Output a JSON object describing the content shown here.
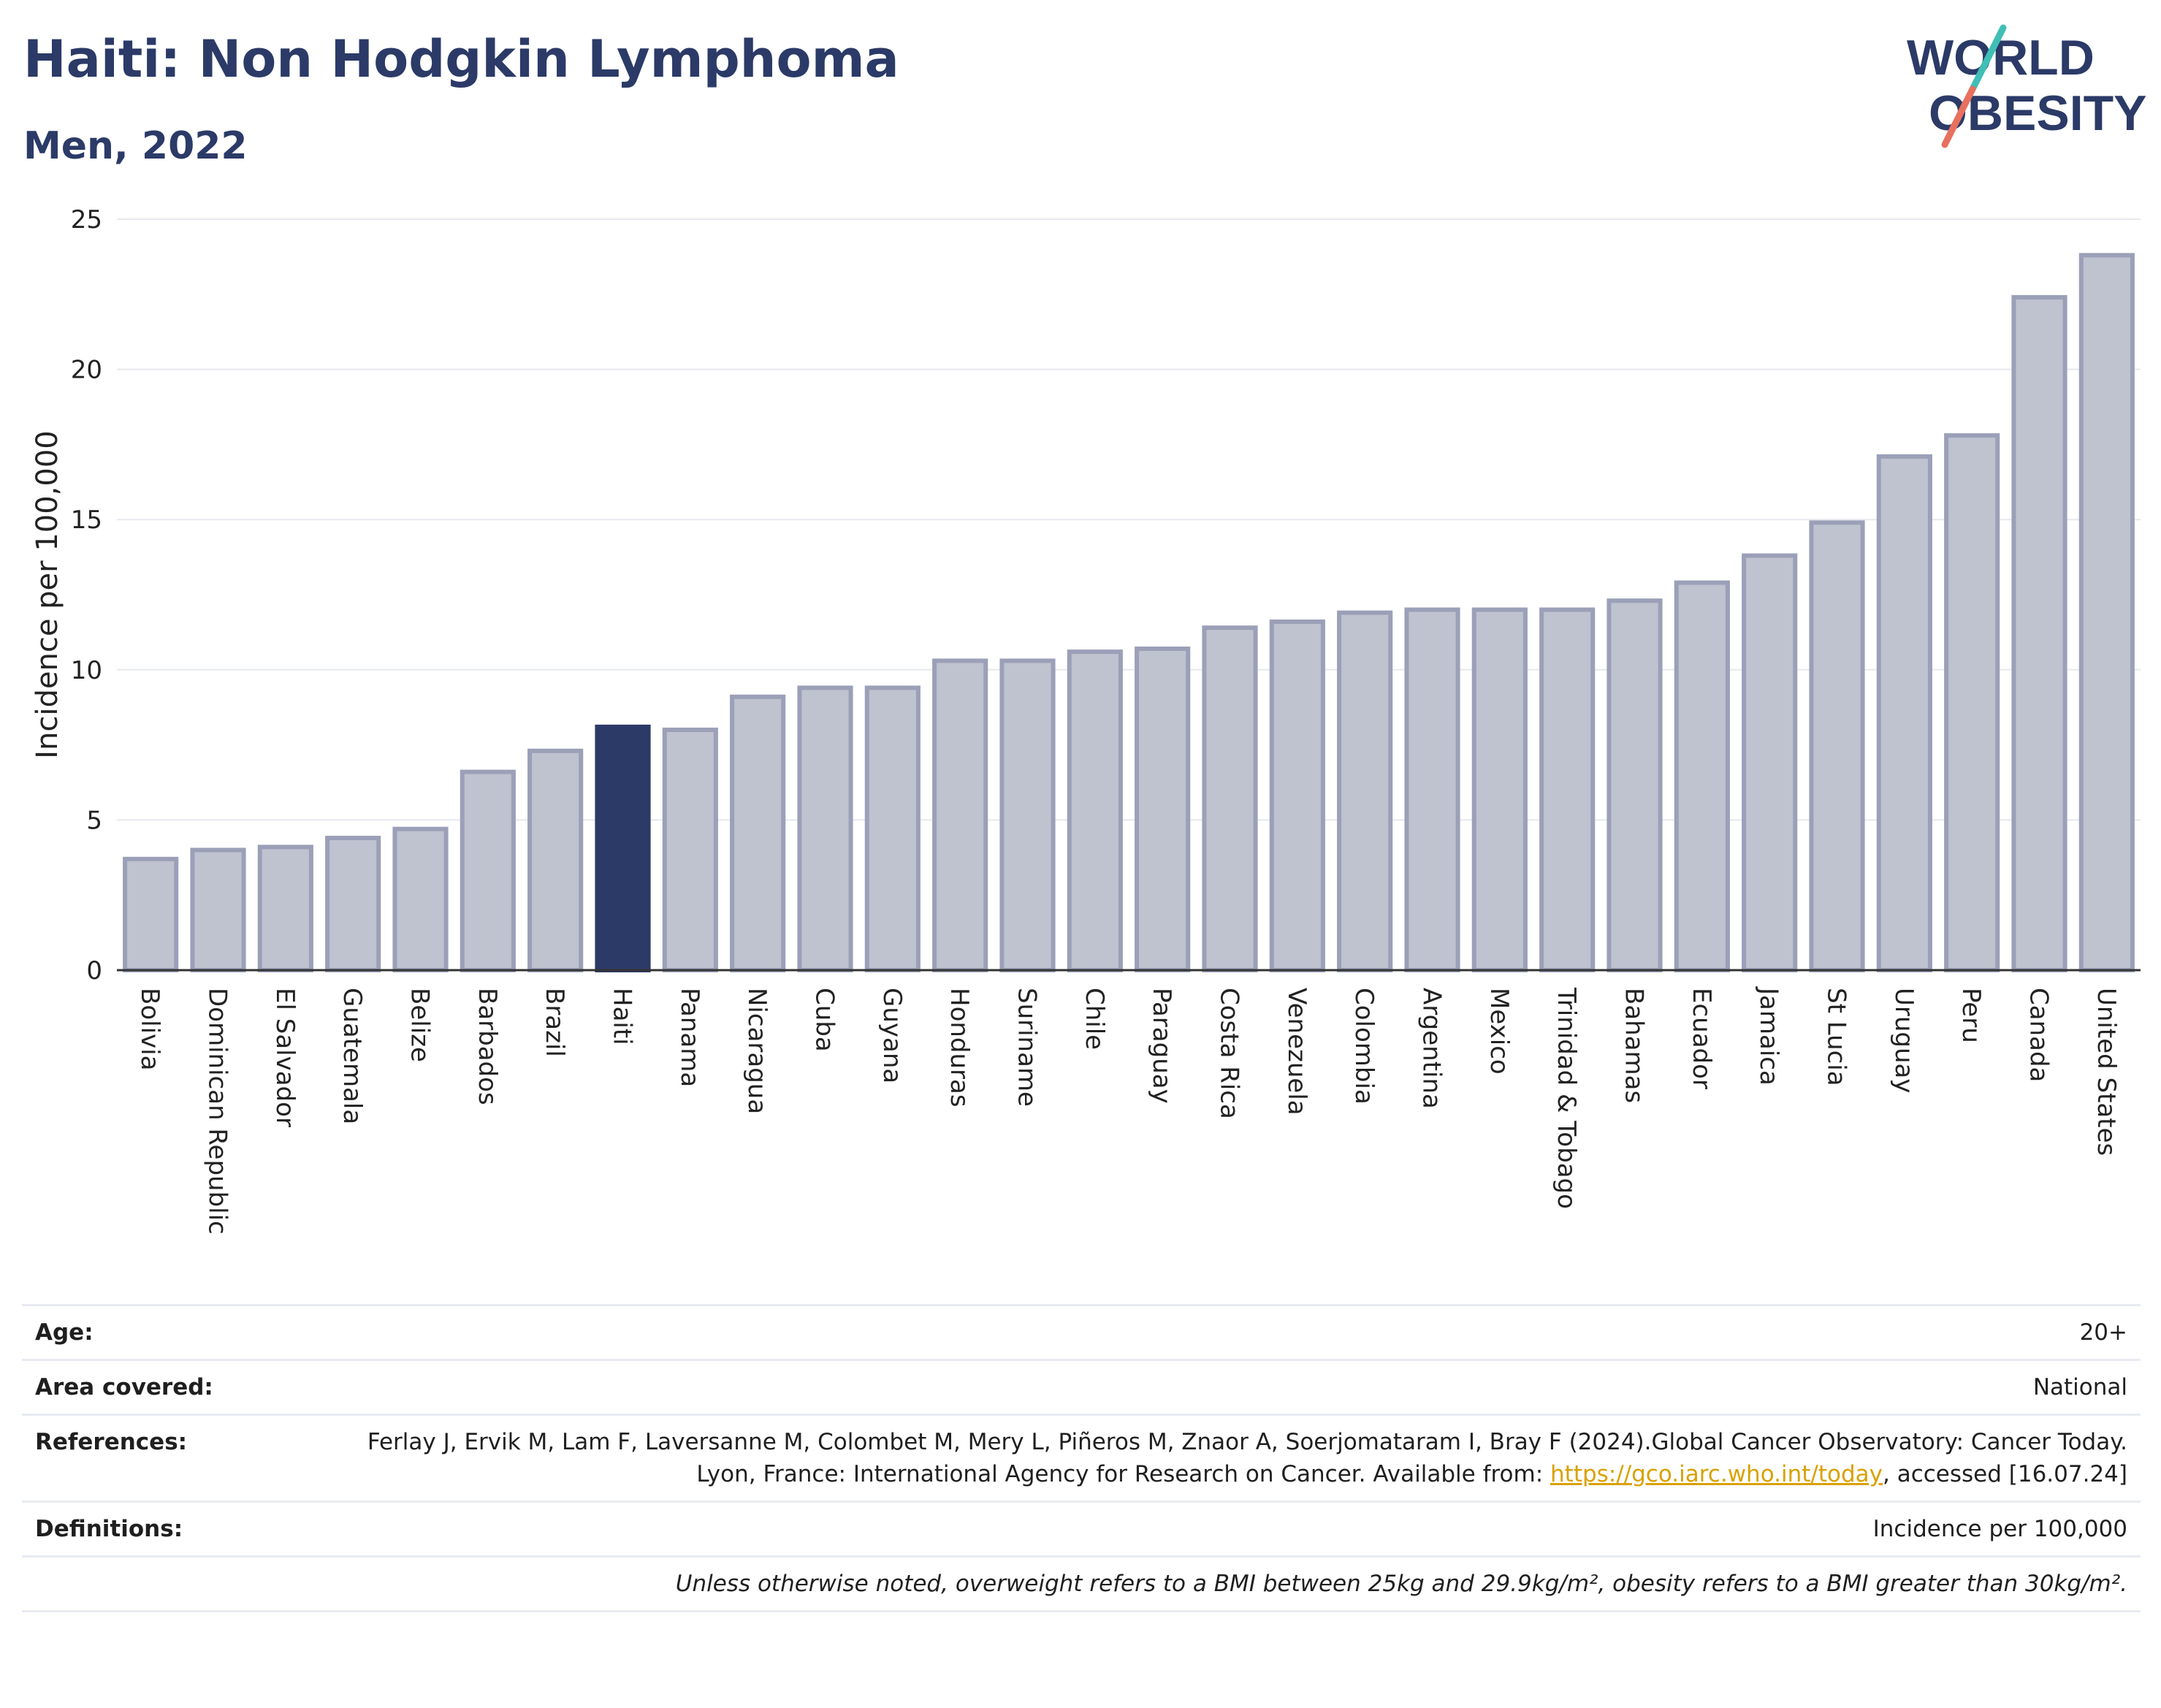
{
  "header": {
    "title": "Haiti: Non Hodgkin Lymphoma",
    "subtitle": "Men, 2022"
  },
  "logo": {
    "line1": "WORLD",
    "line2": "OBESITY",
    "accent_teal": "#3fbfb5",
    "accent_coral": "#e8705f"
  },
  "colors": {
    "brand_navy": "#2b3a67",
    "bar_default": "#bfc2cf",
    "bar_border": "#9ba0b8",
    "bar_highlight": "#2b3a67",
    "grid": "#e6e8ee"
  },
  "chart_data": {
    "type": "bar",
    "ylabel": "Incidence per 100,000",
    "xlabel": "",
    "ylim": [
      0,
      25
    ],
    "yticks": [
      0,
      5,
      10,
      15,
      20,
      25
    ],
    "grid": true,
    "highlight": "Haiti",
    "categories": [
      "Bolivia",
      "Dominican Republic",
      "El Salvador",
      "Guatemala",
      "Belize",
      "Barbados",
      "Brazil",
      "Haiti",
      "Panama",
      "Nicaragua",
      "Cuba",
      "Guyana",
      "Honduras",
      "Suriname",
      "Chile",
      "Paraguay",
      "Costa Rica",
      "Venezuela",
      "Colombia",
      "Argentina",
      "Mexico",
      "Trinidad & Tobago",
      "Bahamas",
      "Ecuador",
      "Jamaica",
      "St Lucia",
      "Uruguay",
      "Peru",
      "Canada",
      "United States"
    ],
    "values": [
      3.7,
      4.0,
      4.1,
      4.4,
      4.7,
      6.6,
      7.3,
      8.1,
      8.0,
      9.1,
      9.4,
      9.4,
      10.3,
      10.3,
      10.6,
      10.7,
      11.4,
      11.6,
      11.9,
      12.0,
      12.0,
      12.0,
      12.3,
      12.9,
      13.8,
      14.9,
      17.1,
      17.8,
      22.4,
      23.8
    ]
  },
  "info": {
    "age_label": "Age:",
    "age_value": "20+",
    "area_label": "Area covered:",
    "area_value": "National",
    "references_label": "References:",
    "references_text_1": "Ferlay J, Ervik M, Lam F, Laversanne M, Colombet M, Mery L, Piñeros M, Znaor A, Soerjomataram I, Bray F (2024).Global Cancer Observatory: Cancer Today. Lyon, France: International Agency for Research on Cancer. Available from: ",
    "references_link": "https://gco.iarc.who.int/today",
    "references_text_2": ", accessed [16.07.24]",
    "definitions_label": "Definitions:",
    "definitions_value": "Incidence per 100,000",
    "note": "Unless otherwise noted, overweight refers to a BMI between 25kg and 29.9kg/m², obesity refers to a BMI greater than 30kg/m²."
  }
}
